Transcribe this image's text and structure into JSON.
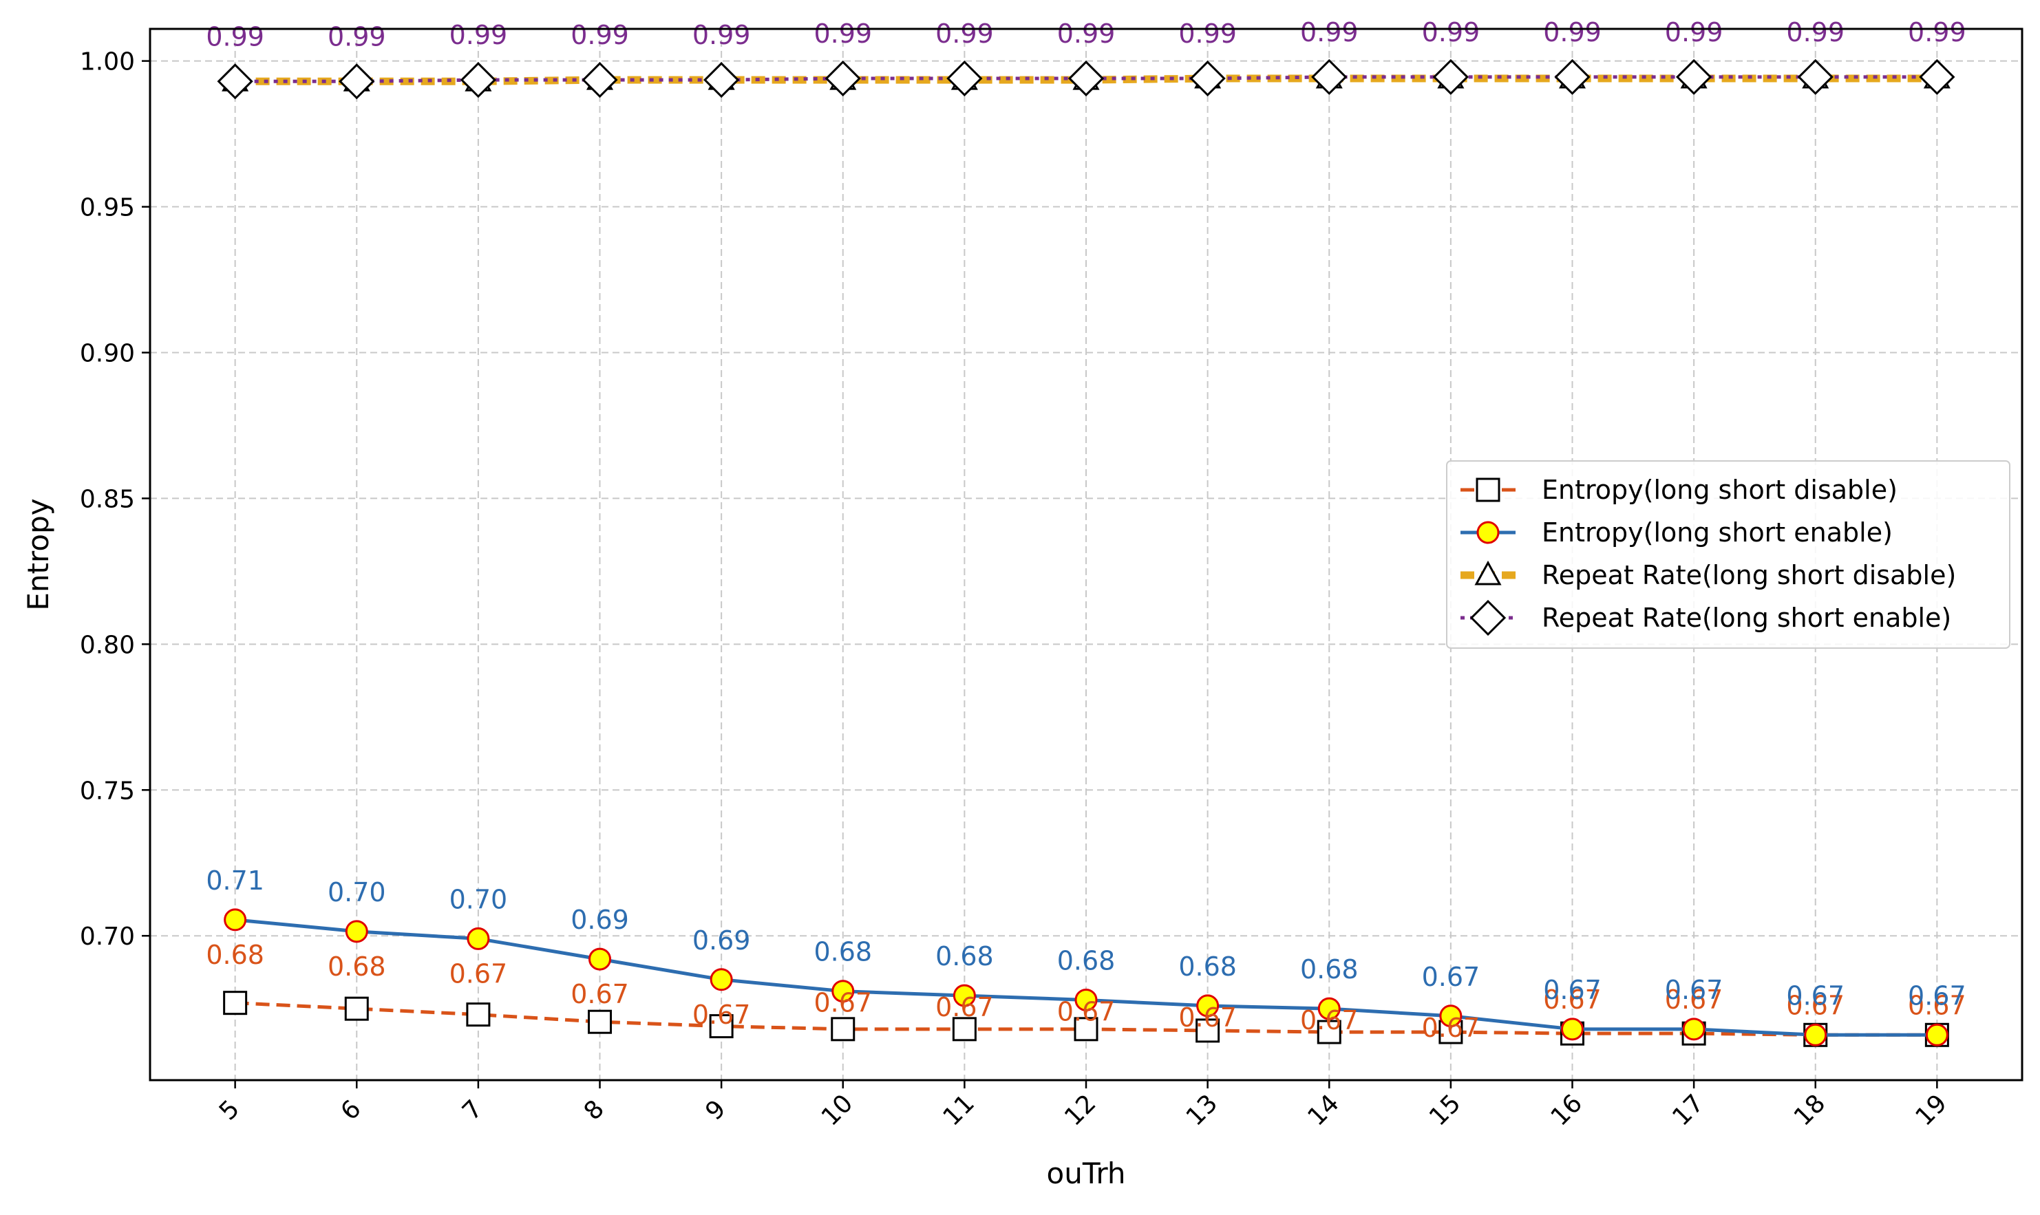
{
  "chart_data": {
    "type": "line",
    "title": "",
    "xlabel": "ouTrh",
    "ylabel": "Entropy",
    "x": [
      5,
      6,
      7,
      8,
      9,
      10,
      11,
      12,
      13,
      14,
      15,
      16,
      17,
      18,
      19
    ],
    "x_tick_labels": [
      "5",
      "6",
      "7",
      "8",
      "9",
      "10",
      "11",
      "12",
      "13",
      "14",
      "15",
      "16",
      "17",
      "18",
      "19"
    ],
    "y_ticks": [
      0.7,
      0.75,
      0.8,
      0.85,
      0.9,
      0.95,
      1.0
    ],
    "y_tick_labels": [
      "0.70",
      "0.75",
      "0.80",
      "0.85",
      "0.90",
      "0.95",
      "1.00"
    ],
    "xlim": [
      4.3,
      19.7
    ],
    "ylim": [
      0.6505,
      1.011
    ],
    "grid": true,
    "legend_position": "center-right",
    "series": [
      {
        "name": "Entropy(long short disable)",
        "color": "#d95319",
        "line_style": "dashed",
        "marker": "square",
        "values": [
          0.677,
          0.675,
          0.673,
          0.6705,
          0.669,
          0.668,
          0.668,
          0.668,
          0.6675,
          0.667,
          0.667,
          0.6665,
          0.6665,
          0.666,
          0.666
        ],
        "labels": [
          "0.68",
          "0.68",
          "0.67",
          "0.67",
          "0.67",
          "0.67",
          "0.67",
          "0.67",
          "0.67",
          "0.67",
          "0.67",
          "0.67",
          "0.67",
          "0.67",
          "0.67"
        ]
      },
      {
        "name": "Entropy(long short enable)",
        "color": "#2d6db0",
        "line_style": "solid",
        "marker": "circle",
        "values": [
          0.7055,
          0.7015,
          0.699,
          0.692,
          0.685,
          0.681,
          0.6795,
          0.678,
          0.676,
          0.675,
          0.6725,
          0.668,
          0.668,
          0.666,
          0.666
        ],
        "labels": [
          "0.71",
          "0.70",
          "0.70",
          "0.69",
          "0.69",
          "0.68",
          "0.68",
          "0.68",
          "0.68",
          "0.68",
          "0.67",
          "0.67",
          "0.67",
          "0.67",
          "0.67"
        ]
      },
      {
        "name": "Repeat Rate(long short disable)",
        "color": "#e6a81e",
        "line_style": "dashed",
        "marker": "triangle",
        "values": [
          0.993,
          0.993,
          0.993,
          0.9935,
          0.9935,
          0.9935,
          0.9935,
          0.9935,
          0.994,
          0.994,
          0.994,
          0.994,
          0.994,
          0.994,
          0.994
        ],
        "labels": [
          "0.99",
          "0.99",
          "0.99",
          "0.99",
          "0.99",
          "0.99",
          "0.99",
          "0.99",
          "0.99",
          "0.99",
          "0.99",
          "0.99",
          "0.99",
          "0.99",
          "0.99"
        ]
      },
      {
        "name": "Repeat Rate(long short enable)",
        "color": "#7b2d8e",
        "line_style": "dotted",
        "marker": "diamond",
        "values": [
          0.993,
          0.993,
          0.9935,
          0.9935,
          0.9935,
          0.994,
          0.994,
          0.994,
          0.994,
          0.9945,
          0.9945,
          0.9945,
          0.9945,
          0.9945,
          0.9945
        ],
        "labels": [
          "0.99",
          "0.99",
          "0.99",
          "0.99",
          "0.99",
          "0.99",
          "0.99",
          "0.99",
          "0.99",
          "0.99",
          "0.99",
          "0.99",
          "0.99",
          "0.99",
          "0.99"
        ]
      }
    ]
  }
}
